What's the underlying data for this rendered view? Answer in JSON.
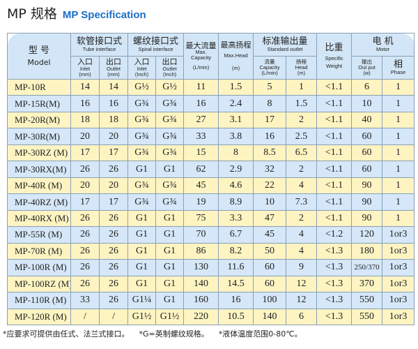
{
  "title": {
    "cn": "MP 规格",
    "en": "MP Specification"
  },
  "header": {
    "model_cn": "型 号",
    "model_en": "Model",
    "tube_cn": "软管接口式",
    "tube_en": "Tube interface",
    "spiral_cn": "螺纹接口式",
    "spiral_en": "Spiral interface",
    "inlet_cn": "入口",
    "inlet_en": "Inlet",
    "outlet_cn": "出口",
    "outlet_en": "Outlet",
    "mm": "(mm)",
    "inch": "(Inch)",
    "maxcap_cn": "最大流量",
    "maxcap_en1": "Max.",
    "maxcap_en2": "Capacity",
    "lmin": "(L/min)",
    "maxhead_cn": "最高扬程",
    "maxhead_en": "Max.Head",
    "m": "(m)",
    "std_cn": "标准输出量",
    "std_en": "Standard outlet",
    "flow_cn": "流量",
    "flow_en": "Capacity",
    "head_cn": "扬程",
    "head_en": "Head",
    "sg_cn": "比重",
    "sg_en1": "Specific",
    "sg_en2": "Weight",
    "motor_cn": "电 机",
    "motor_en": "Motor",
    "out_cn": "输出",
    "out_en": "Out put",
    "w": "(w)",
    "phase_cn": "相",
    "phase_en": "Phase"
  },
  "rows": [
    [
      "MP-10R",
      "14",
      "14",
      "G½",
      "G½",
      "11",
      "1.5",
      "5",
      "1",
      "<1.1",
      "6",
      "1"
    ],
    [
      "MP-15R(M)",
      "16",
      "16",
      "G¾",
      "G¾",
      "16",
      "2.4",
      "8",
      "1.5",
      "<1.1",
      "10",
      "1"
    ],
    [
      "MP-20R(M)",
      "18",
      "18",
      "G¾",
      "G¾",
      "27",
      "3.1",
      "17",
      "2",
      "<1.1",
      "40",
      "1"
    ],
    [
      "MP-30R(M)",
      "20",
      "20",
      "G¾",
      "G¾",
      "33",
      "3.8",
      "16",
      "2.5",
      "<1.1",
      "60",
      "1"
    ],
    [
      "MP-30RZ (M)",
      "17",
      "17",
      "G¾",
      "G¾",
      "15",
      "8",
      "8.5",
      "6.5",
      "<1.1",
      "60",
      "1"
    ],
    [
      "MP-30RX(M)",
      "26",
      "26",
      "G1",
      "G1",
      "62",
      "2.9",
      "32",
      "2",
      "<1.1",
      "60",
      "1"
    ],
    [
      "MP-40R (M)",
      "20",
      "20",
      "G¾",
      "G¾",
      "45",
      "4.6",
      "22",
      "4",
      "<1.1",
      "90",
      "1"
    ],
    [
      "MP-40RZ (M)",
      "17",
      "17",
      "G¾",
      "G¾",
      "19",
      "8.9",
      "10",
      "7.3",
      "<1.1",
      "90",
      "1"
    ],
    [
      "MP-40RX (M)",
      "26",
      "26",
      "G1",
      "G1",
      "75",
      "3.3",
      "47",
      "2",
      "<1.1",
      "90",
      "1"
    ],
    [
      "MP-55R (M)",
      "26",
      "26",
      "G1",
      "G1",
      "70",
      "6.7",
      "45",
      "4",
      "<1.2",
      "120",
      "1or3"
    ],
    [
      "MP-70R (M)",
      "26",
      "26",
      "G1",
      "G1",
      "86",
      "8.2",
      "50",
      "4",
      "<1.3",
      "180",
      "1or3"
    ],
    [
      "MP-100R (M)",
      "26",
      "26",
      "G1",
      "G1",
      "130",
      "11.6",
      "60",
      "9",
      "<1.3",
      "250/370",
      "1or3"
    ],
    [
      "MP-100RZ (M)",
      "26",
      "26",
      "G1",
      "G1",
      "140",
      "14.5",
      "60",
      "12",
      "<1.3",
      "370",
      "1or3"
    ],
    [
      "MP-110R (M)",
      "33",
      "26",
      "G1¼",
      "G1",
      "160",
      "16",
      "100",
      "12",
      "<1.3",
      "550",
      "1or3"
    ],
    [
      "MP-120R (M)",
      "/",
      "/",
      "G1½",
      "G1½",
      "220",
      "10.5",
      "140",
      "6",
      "<1.3",
      "550",
      "1or3"
    ]
  ],
  "notes": [
    "*应要求可提供由任式、法兰式接口。",
    "*G=英制螺纹规格。",
    "*液体温度范围0-80℃。"
  ],
  "colors": {
    "header": "#d3e6f7",
    "row_yellow": "#fdf4c2",
    "row_blue": "#d5e7f8",
    "title_en": "#1a6fc4"
  }
}
